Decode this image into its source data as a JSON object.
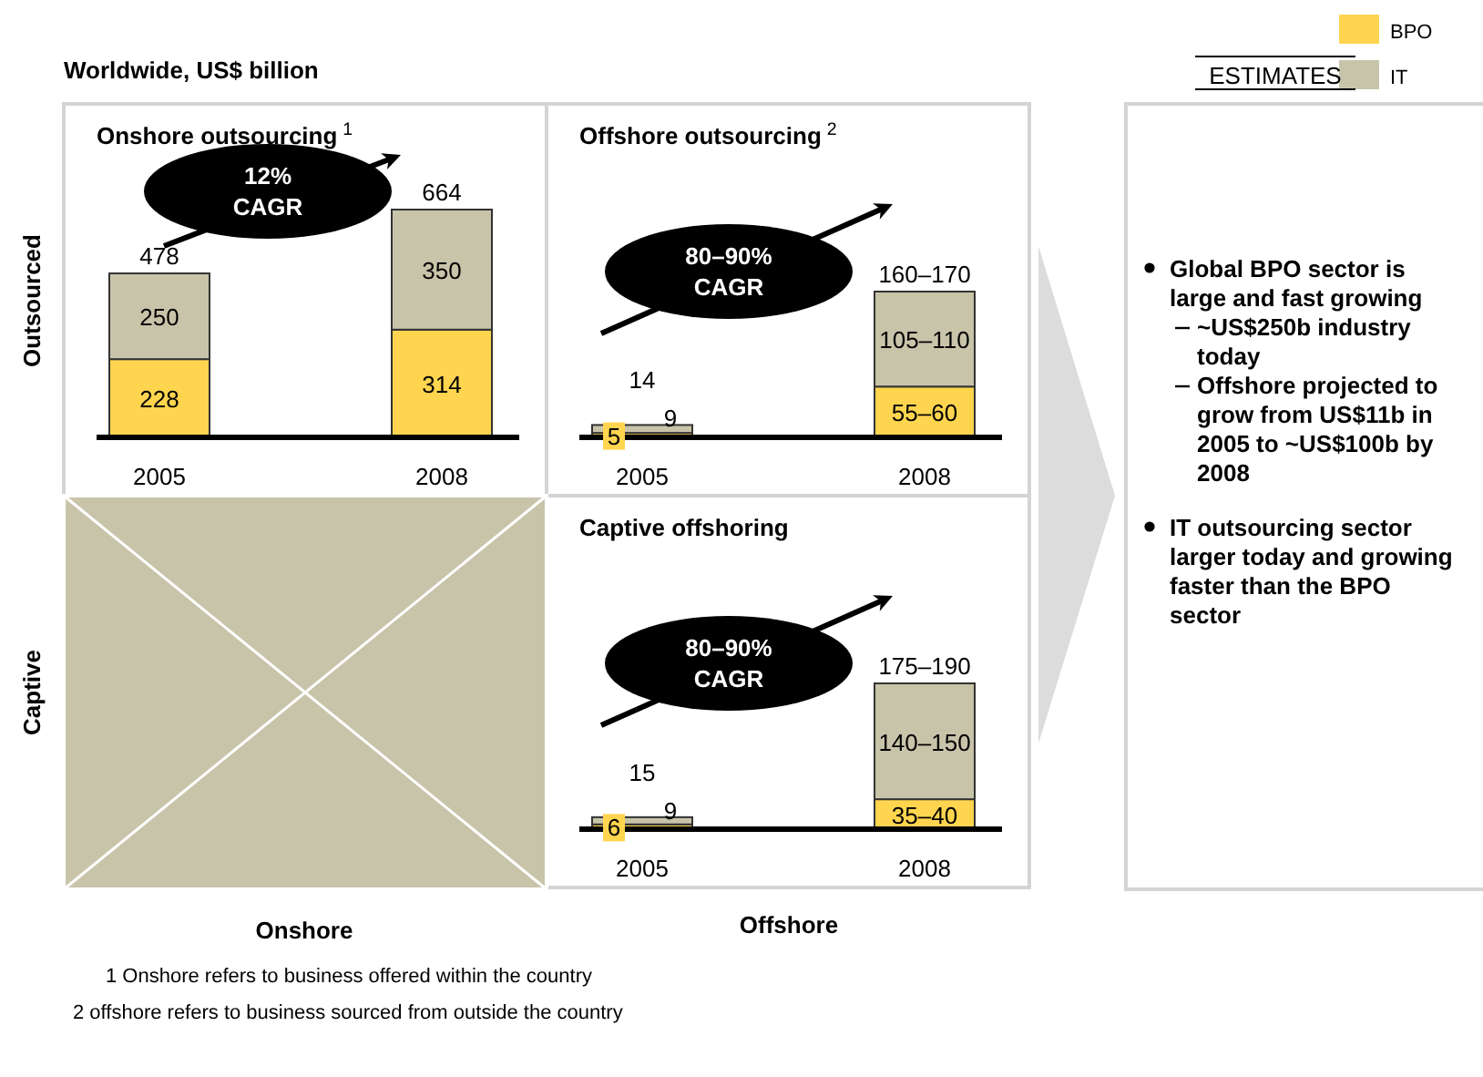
{
  "chart_data": [
    {
      "type": "bar",
      "stacked": true,
      "title": "Onshore outsourcing$^{1}$",
      "categories": [
        "2005",
        "2008"
      ],
      "legend": "top right",
      "data_labels": true,
      "series": [
        {
          "name": "BPO",
          "color": "#ffd54f",
          "values": [
            228,
            314
          ]
        },
        {
          "name": "IT",
          "color": "#c8c4aa",
          "values": [
            250,
            350
          ]
        }
      ],
      "totals": [
        "478",
        "664"
      ],
      "annotations": [
        "12% CAGR"
      ]
    },
    {
      "type": "bar",
      "stacked": true,
      "title": "Offshore outsourcing$^{2}$",
      "categories": [
        "2005",
        "2008"
      ],
      "series": [
        {
          "color": "#ffd54f",
          "values": [
            5,
            57.5
          ],
          "value_labels": [
            "5",
            "55–60"
          ]
        },
        {
          "color": "#c8c4aa",
          "values": [
            9,
            107.5
          ],
          "value_labels": [
            "9",
            "105–110"
          ]
        }
      ],
      "totals": [
        "14",
        "160–170"
      ],
      "annotations": [
        "80–90% CAGR"
      ]
    },
    {
      "type": "bar",
      "stacked": true,
      "title": "Captive offshoring",
      "categories": [
        "2005",
        "2008"
      ],
      "series": [
        {
          "color": "#ffd54f",
          "values": [
            6,
            37.5
          ],
          "value_labels": [
            "6",
            "35–40"
          ]
        },
        {
          "color": "#c8c4aa",
          "values": [
            9,
            145
          ],
          "value_labels": [
            "9",
            "140–150"
          ]
        }
      ],
      "totals": [
        "15",
        "175–190"
      ],
      "annotations": [
        "80–90% CAGR"
      ]
    },
    {
      "type": "other",
      "title": "Worldwide, US$ billion",
      "annotations": [
        "ESTIMATES",
        "Outsourced",
        "Captive",
        "Onshore",
        "Offshore",
        "Global BPO sector is large and fast growing",
        "~US$250b industry today",
        "Offshore projected to grow from US$11b in 2005 to ~US$100b by 2008",
        "IT outsourcing sector larger today and growing faster than the BPO sector",
        "1 Onshore refers to business offered within the country",
        "2 offshore refers to business sourced from outside the country"
      ]
    }
  ]
}
